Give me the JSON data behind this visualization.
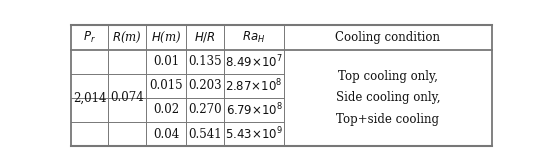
{
  "pr_value": "2,014",
  "r_value": "0.074",
  "rows": [
    {
      "H": "0.01",
      "HR": "0.135",
      "Ra_base": "8.49×10",
      "Ra_sup": "7"
    },
    {
      "H": "0.015",
      "HR": "0.203",
      "Ra_base": "2.87×10",
      "Ra_sup": "8"
    },
    {
      "H": "0.02",
      "HR": "0.270",
      "Ra_base": "6.79×10",
      "Ra_sup": "8"
    },
    {
      "H": "0.04",
      "HR": "0.541",
      "Ra_base": "5.43×10",
      "Ra_sup": "9"
    }
  ],
  "cooling_lines": [
    "Top cooling only,",
    "Side cooling only,",
    "Top+side cooling"
  ],
  "background_color": "#ffffff",
  "line_color": "#777777",
  "text_color": "#111111",
  "fontsize": 8.5,
  "header_fontsize": 8.5
}
